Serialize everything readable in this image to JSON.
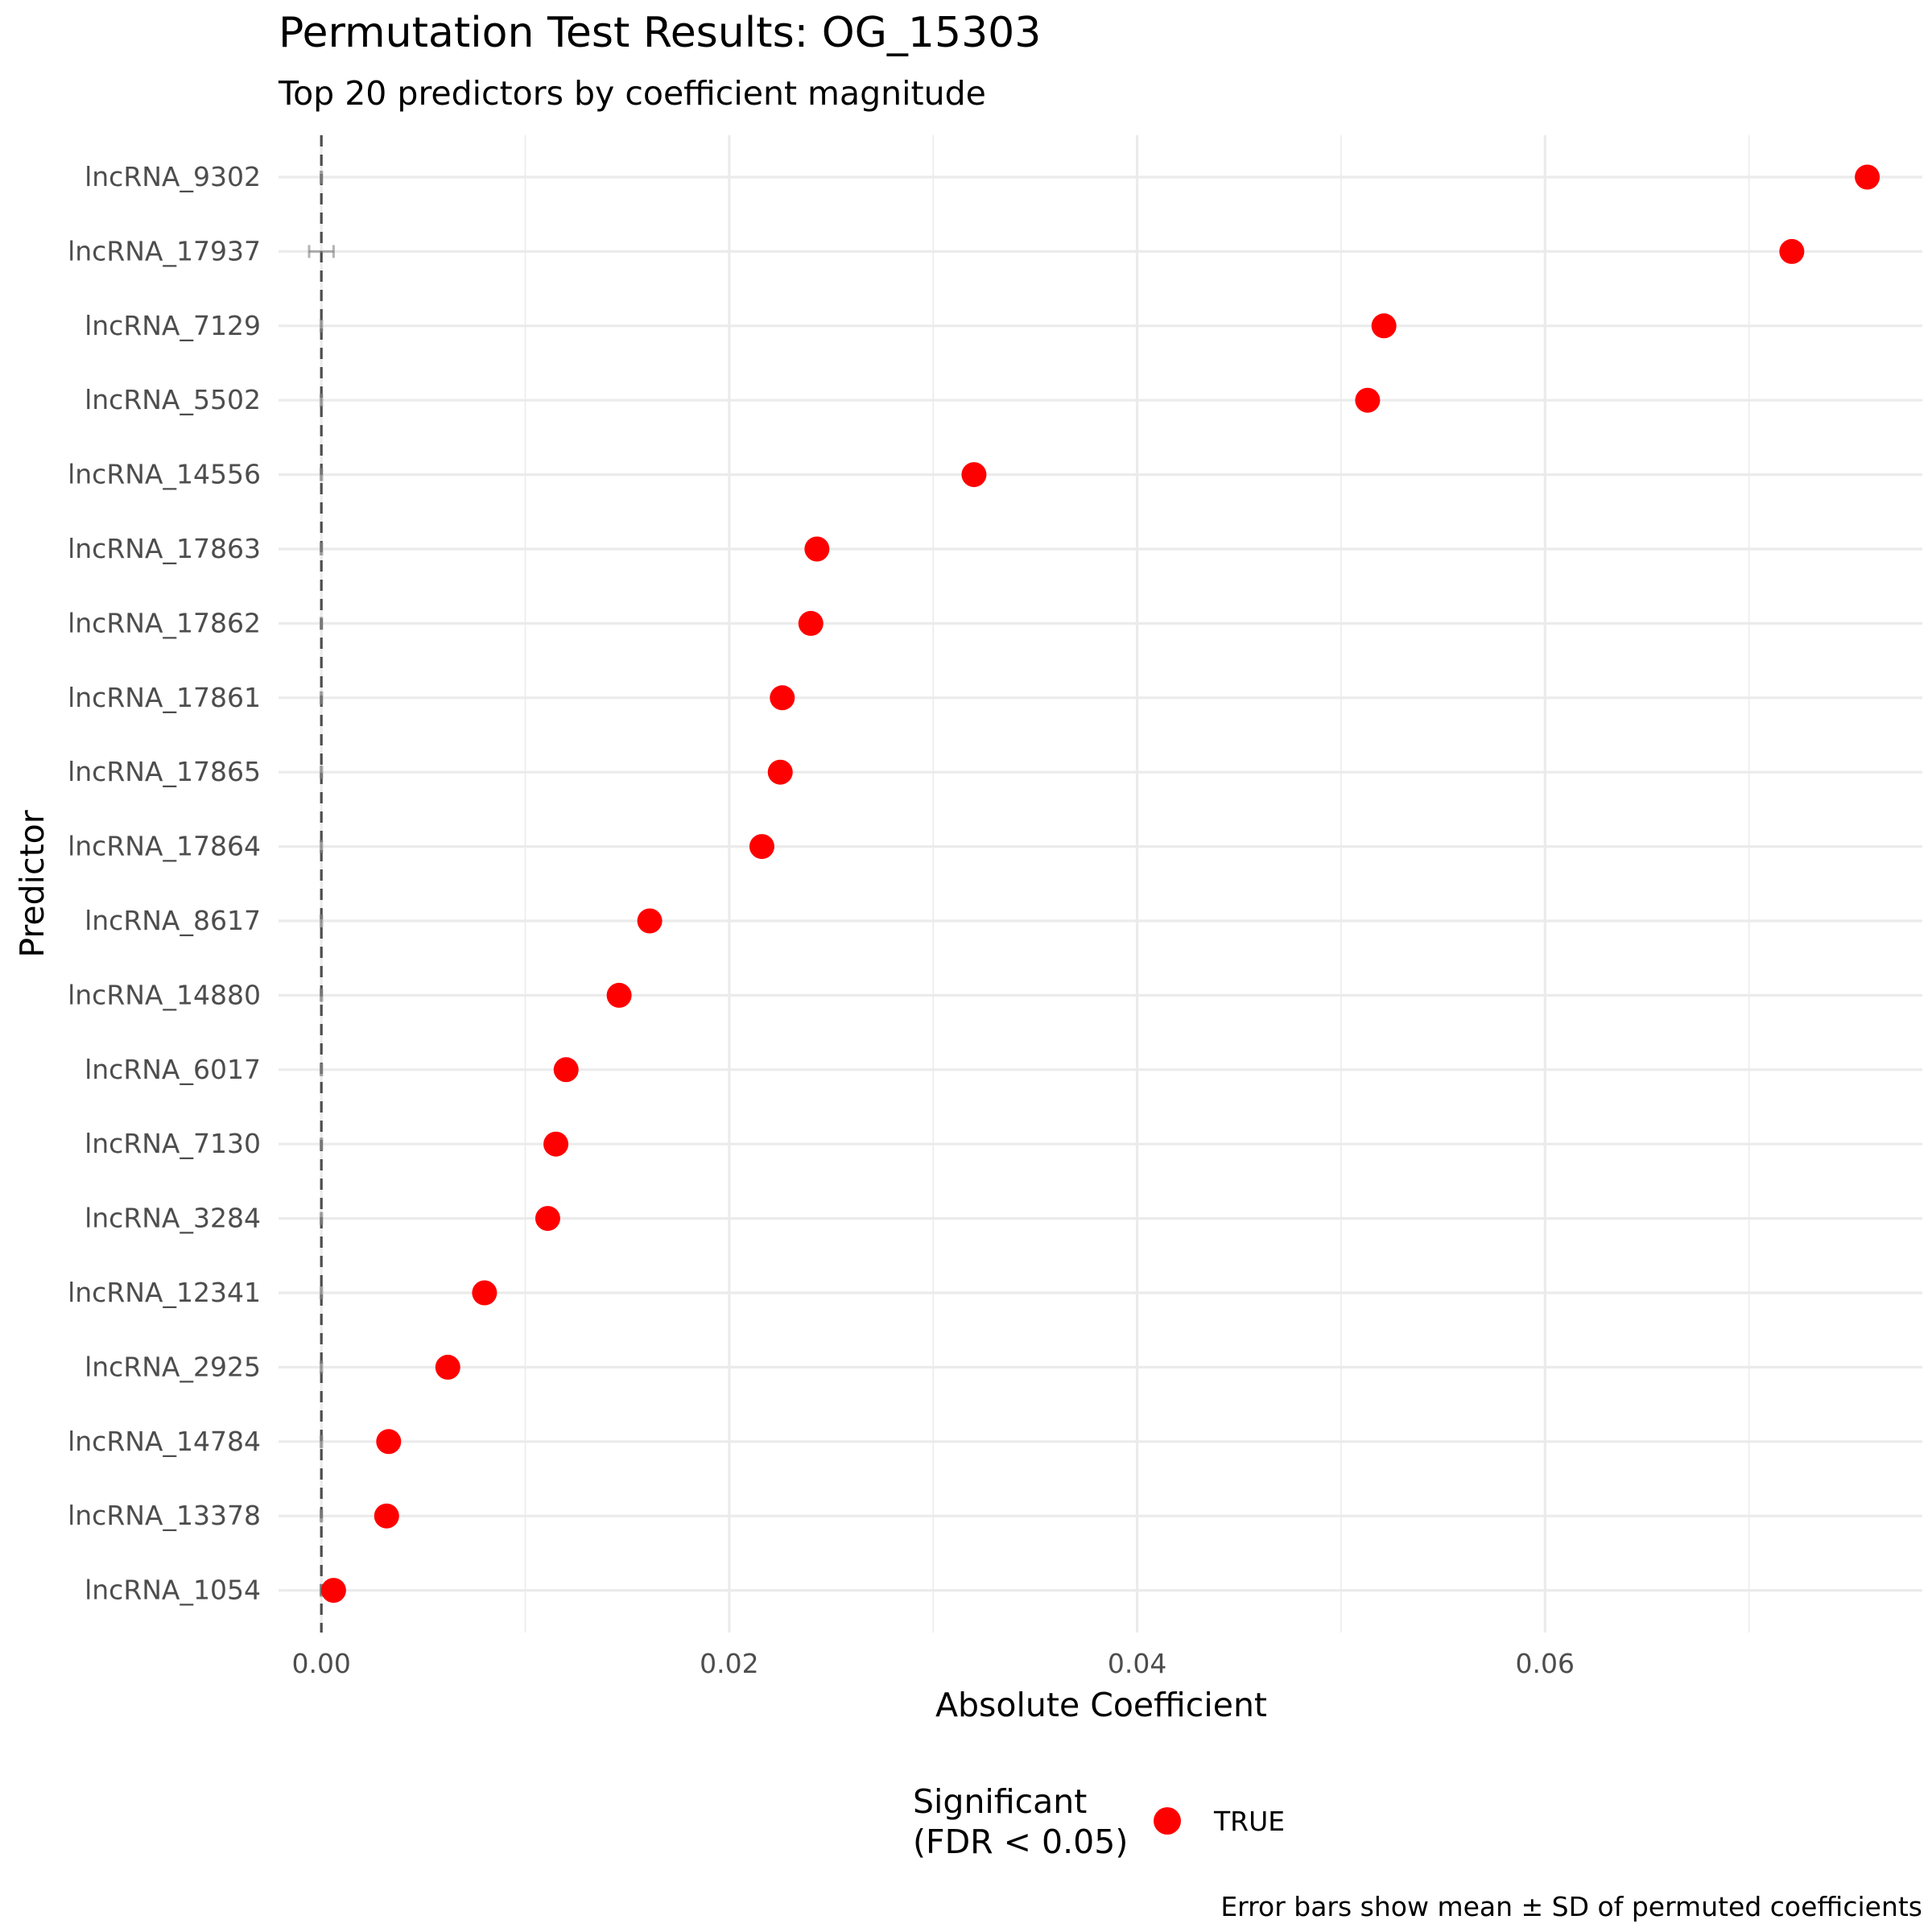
{
  "chart_data": {
    "type": "scatter",
    "title": "Permutation Test Results: OG_15303",
    "subtitle": "Top 20 predictors by coefficient magnitude",
    "xlabel": "Absolute Coefficient",
    "ylabel": "Predictor",
    "xlim": [
      -0.0021,
      0.0785
    ],
    "x_ticks": [
      {
        "value": 0.0,
        "label": "0.00"
      },
      {
        "value": 0.02,
        "label": "0.02"
      },
      {
        "value": 0.04,
        "label": "0.04"
      },
      {
        "value": 0.06,
        "label": "0.06"
      }
    ],
    "reference_line": {
      "x": 0,
      "style": "dashed"
    },
    "grid": true,
    "categories": [
      "lncRNA_9302",
      "lncRNA_17937",
      "lncRNA_7129",
      "lncRNA_5502",
      "lncRNA_14556",
      "lncRNA_17863",
      "lncRNA_17862",
      "lncRNA_17861",
      "lncRNA_17865",
      "lncRNA_17864",
      "lncRNA_8617",
      "lncRNA_14880",
      "lncRNA_6017",
      "lncRNA_7130",
      "lncRNA_3284",
      "lncRNA_12341",
      "lncRNA_2925",
      "lncRNA_14784",
      "lncRNA_13378",
      "lncRNA_1054"
    ],
    "values": [
      0.0758,
      0.0721,
      0.0521,
      0.0513,
      0.032,
      0.0243,
      0.024,
      0.0226,
      0.0225,
      0.0216,
      0.0161,
      0.0146,
      0.012,
      0.0115,
      0.0111,
      0.008,
      0.0062,
      0.0033,
      0.0032,
      0.0006
    ],
    "permuted_mean": [
      0,
      0,
      0,
      0,
      0,
      0,
      0,
      0,
      0,
      0,
      0,
      0,
      0,
      0,
      0,
      0,
      0,
      0,
      0,
      0
    ],
    "permuted_sd": [
      3e-05,
      0.0006,
      3e-05,
      3e-05,
      3e-05,
      3e-05,
      3e-05,
      3e-05,
      3e-05,
      3e-05,
      3e-05,
      3e-05,
      3e-05,
      3e-05,
      3e-05,
      3e-05,
      3e-05,
      3e-05,
      3e-05,
      3e-05
    ],
    "significant": [
      true,
      true,
      true,
      true,
      true,
      true,
      true,
      true,
      true,
      true,
      true,
      true,
      true,
      true,
      true,
      true,
      true,
      true,
      true,
      true
    ],
    "point_color": "#ff0000",
    "legend": {
      "title_line1": "Significant",
      "title_line2": "(FDR < 0.05)",
      "label": "TRUE",
      "position": "bottom"
    },
    "caption": "Error bars show mean ± SD of permuted coefficients"
  }
}
